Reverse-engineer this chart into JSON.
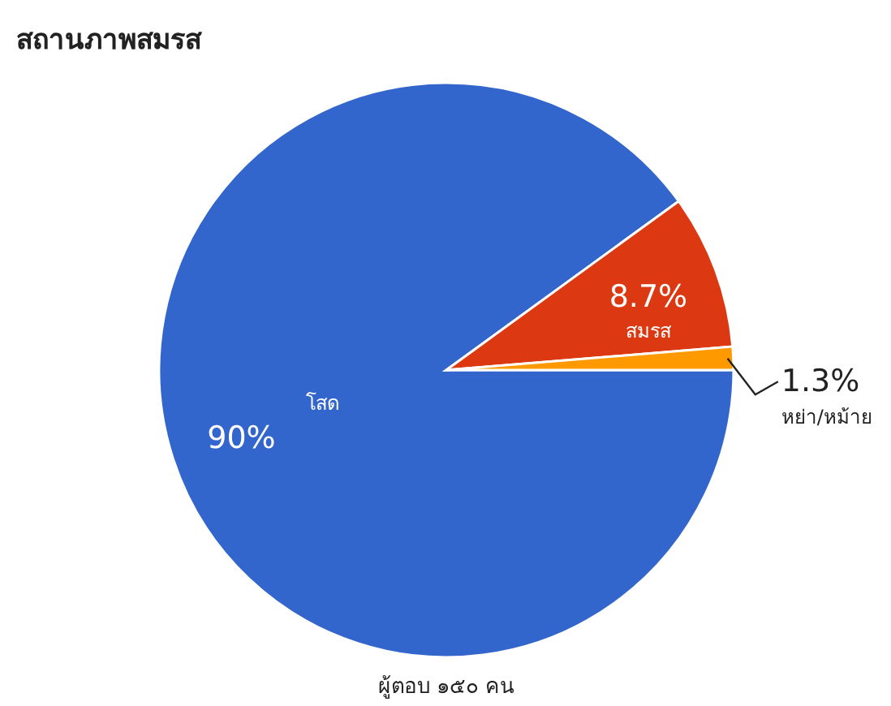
{
  "chart_data": {
    "type": "pie",
    "title": "สถานภาพสมรส",
    "categories": [
      "โสด",
      "สมรส",
      "หย่า/หม้าย"
    ],
    "values": [
      90,
      8.7,
      1.3
    ],
    "colors": [
      "#3366cc",
      "#dc3912",
      "#ff9900"
    ],
    "value_labels": [
      "90%",
      "8.7%",
      "1.3%"
    ],
    "legend": false,
    "annotations": [
      "ผู้ตอบ ๑๕๐ คน"
    ]
  }
}
